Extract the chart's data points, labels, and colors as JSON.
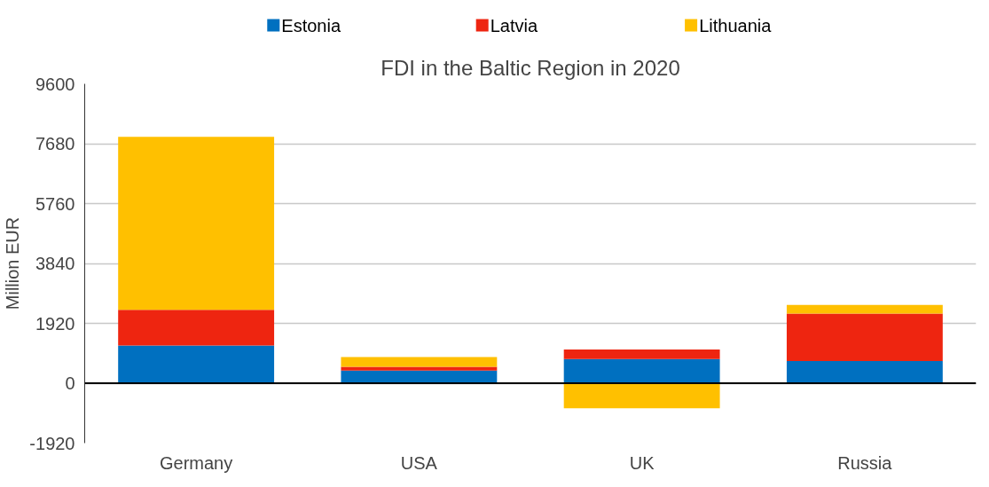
{
  "chart_data": {
    "type": "bar",
    "title": "FDI in the Baltic Region in 2020",
    "ylabel": "Million EUR",
    "categories": [
      "Germany",
      "USA",
      "UK",
      "Russia"
    ],
    "stacked": true,
    "series": [
      {
        "name": "Estonia",
        "color": "#0070c0",
        "values": [
          1208,
          403,
          774,
          712
        ]
      },
      {
        "name": "Latvia",
        "color": "#ee2510",
        "values": [
          1145,
          124,
          310,
          1518
        ]
      },
      {
        "name": "Lithuania",
        "color": "#ffc000",
        "values": [
          5544,
          309,
          -805,
          278
        ]
      }
    ],
    "ylim": [
      -1920,
      9600
    ],
    "yticks": [
      -1920,
      0,
      1920,
      3840,
      5760,
      7680,
      9600
    ],
    "grid": "y",
    "legend": "top"
  }
}
